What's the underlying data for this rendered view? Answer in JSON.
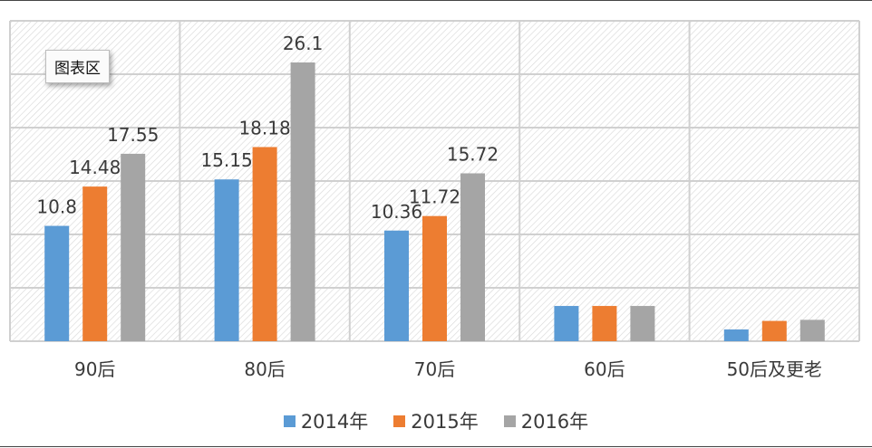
{
  "chart_data": {
    "type": "bar",
    "categories": [
      "90后",
      "80后",
      "70后",
      "60后",
      "50后及更老"
    ],
    "series": [
      {
        "name": "2014年",
        "color": "#5B9BD5",
        "values": [
          10.8,
          15.15,
          10.36,
          3.3,
          1.1
        ],
        "labels": [
          "10.8",
          "15.15",
          "10.36",
          "",
          ""
        ]
      },
      {
        "name": "2015年",
        "color": "#ED7D31",
        "values": [
          14.48,
          18.18,
          11.72,
          3.3,
          1.9
        ],
        "labels": [
          "14.48",
          "18.18",
          "11.72",
          "",
          ""
        ]
      },
      {
        "name": "2016年",
        "color": "#A5A5A5",
        "values": [
          17.55,
          26.1,
          15.72,
          3.3,
          2.0
        ],
        "labels": [
          "17.55",
          "26.1",
          "15.72",
          "",
          ""
        ]
      }
    ],
    "ylim": [
      0,
      30
    ],
    "grid": true,
    "legend": "bottom",
    "area_tag": "图表区"
  }
}
